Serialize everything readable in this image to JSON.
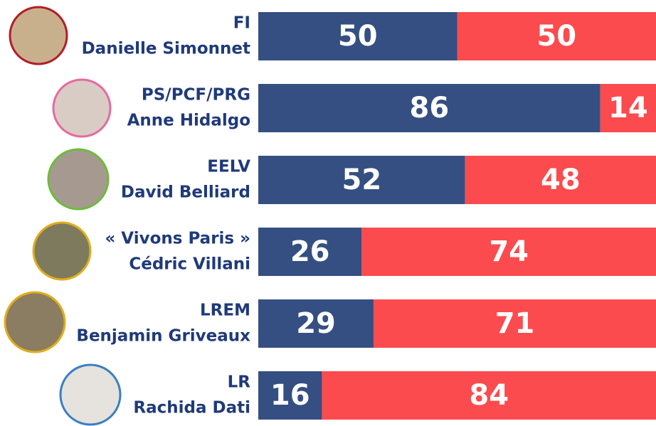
{
  "chart_data": {
    "type": "bar",
    "orientation": "horizontal",
    "stacked": true,
    "parties": [
      "FI",
      "PS/PCF/PRG",
      "EELV",
      "« Vivons Paris »",
      "LREM",
      "LR"
    ],
    "categories": [
      "Danielle Simonnet",
      "Anne Hidalgo",
      "David Belliard",
      "Cédric Villani",
      "Benjamin Griveaux",
      "Rachida Dati"
    ],
    "xlim": [
      0,
      100
    ],
    "series": [
      {
        "color": "#354f82",
        "values": [
          50,
          86,
          52,
          26,
          29,
          16
        ]
      },
      {
        "color": "#fb4b4e",
        "values": [
          50,
          14,
          48,
          74,
          71,
          84
        ]
      }
    ]
  }
}
